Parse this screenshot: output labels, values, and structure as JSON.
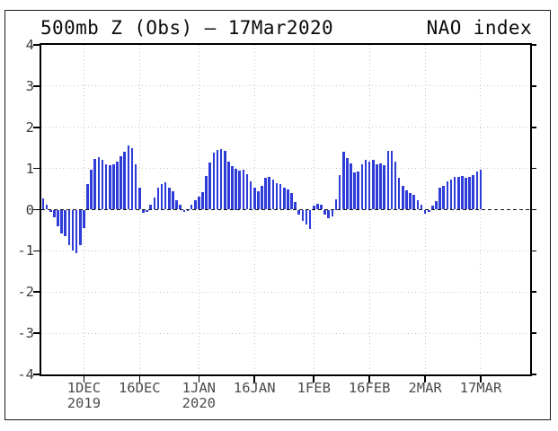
{
  "header": {
    "title": "500mb Z (Obs) – 17Mar2020",
    "right_label": "NAO index"
  },
  "chart_data": {
    "type": "bar",
    "title": "500mb Z (Obs) – 17Mar2020",
    "series_label": "NAO index",
    "ylabel": "",
    "xlabel": "",
    "ylim": [
      -4,
      4
    ],
    "grid": "dotted",
    "bar_color": "#2e3cd8",
    "grid_color": "#c4c4c4",
    "zero_line_style": "dashed-black",
    "yticks": [
      {
        "value": 4,
        "label": "4"
      },
      {
        "value": 3,
        "label": "3"
      },
      {
        "value": 2,
        "label": "2"
      },
      {
        "value": 1,
        "label": "1"
      },
      {
        "value": 0,
        "label": "0"
      },
      {
        "value": -1,
        "label": "-1"
      },
      {
        "value": -2,
        "label": "-2"
      },
      {
        "value": -3,
        "label": "-3"
      },
      {
        "value": -4,
        "label": "-4"
      }
    ],
    "xticks": [
      {
        "day": 11,
        "label": "1DEC",
        "sublabel": "2019"
      },
      {
        "day": 26,
        "label": "16DEC",
        "sublabel": ""
      },
      {
        "day": 42,
        "label": "1JAN",
        "sublabel": "2020"
      },
      {
        "day": 57,
        "label": "16JAN",
        "sublabel": ""
      },
      {
        "day": 73,
        "label": "1FEB",
        "sublabel": ""
      },
      {
        "day": 88,
        "label": "16FEB",
        "sublabel": ""
      },
      {
        "day": 103,
        "label": "2MAR",
        "sublabel": ""
      },
      {
        "day": 118,
        "label": "17MAR",
        "sublabel": ""
      }
    ],
    "values": [
      0.27,
      0.12,
      -0.05,
      -0.18,
      -0.4,
      -0.58,
      -0.65,
      -0.87,
      -1.0,
      -1.05,
      -0.86,
      -0.44,
      0.62,
      0.96,
      1.23,
      1.28,
      1.21,
      1.1,
      1.08,
      1.1,
      1.17,
      1.29,
      1.41,
      1.56,
      1.5,
      1.09,
      0.54,
      -0.07,
      -0.05,
      0.13,
      0.29,
      0.54,
      0.62,
      0.67,
      0.54,
      0.44,
      0.22,
      0.11,
      -0.06,
      -0.04,
      0.11,
      0.23,
      0.31,
      0.42,
      0.82,
      1.15,
      1.39,
      1.44,
      1.47,
      1.42,
      1.17,
      1.06,
      1.0,
      0.95,
      0.97,
      0.87,
      0.69,
      0.54,
      0.45,
      0.58,
      0.77,
      0.8,
      0.73,
      0.65,
      0.62,
      0.54,
      0.49,
      0.4,
      0.18,
      -0.11,
      -0.28,
      -0.36,
      -0.47,
      0.09,
      0.15,
      0.13,
      -0.11,
      -0.2,
      -0.17,
      0.25,
      0.84,
      1.4,
      1.26,
      1.13,
      0.91,
      0.93,
      1.09,
      1.22,
      1.17,
      1.2,
      1.09,
      1.12,
      1.07,
      1.43,
      1.42,
      1.17,
      0.77,
      0.58,
      0.46,
      0.4,
      0.35,
      0.23,
      0.11,
      -0.09,
      -0.05,
      0.09,
      0.2,
      0.53,
      0.58,
      0.69,
      0.74,
      0.8,
      0.79,
      0.82,
      0.77,
      0.8,
      0.84,
      0.93,
      0.96
    ]
  }
}
